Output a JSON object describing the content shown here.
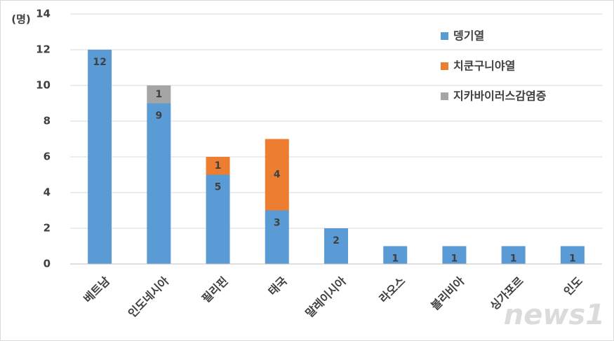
{
  "chart_data": {
    "type": "bar",
    "stacked": true,
    "y_label": "(명)",
    "categories": [
      "베트남",
      "인도네시아",
      "필리핀",
      "태국",
      "말레이시아",
      "라오스",
      "볼리비아",
      "싱가포르",
      "인도"
    ],
    "series": [
      {
        "name": "뎅기열",
        "color": "#5b9bd5",
        "values": [
          12,
          9,
          5,
          3,
          2,
          1,
          1,
          1,
          1
        ]
      },
      {
        "name": "치쿤구니야열",
        "color": "#ed7d31",
        "values": [
          null,
          null,
          1,
          4,
          null,
          null,
          null,
          null,
          null
        ]
      },
      {
        "name": "지카바이러스감염증",
        "color": "#a5a5a5",
        "values": [
          null,
          1,
          null,
          null,
          null,
          null,
          null,
          null,
          null
        ]
      }
    ],
    "ylim": [
      0,
      14
    ],
    "yticks": [
      0,
      2,
      4,
      6,
      8,
      10,
      12,
      14
    ],
    "grid": true,
    "legend": "top-right",
    "watermark": "news1"
  }
}
